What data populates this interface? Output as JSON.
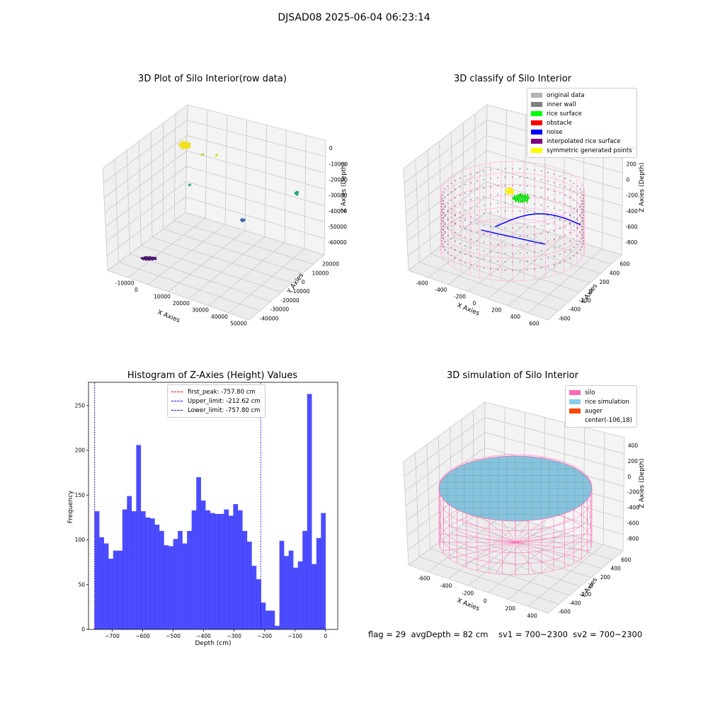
{
  "suptitle": "DJSAD08 2025-06-04 06:23:14",
  "panel_raw": {
    "title": "3D Plot of Silo Interior(row data)",
    "xlabel": "X Axies",
    "ylabel": "Y Axies",
    "zlabel": "Z Axies (Depth)",
    "x_ticks": [
      "-10000",
      "0",
      "10000",
      "20000",
      "30000",
      "40000",
      "50000"
    ],
    "y_ticks": [
      "20000",
      "10000",
      "0",
      "-10000",
      "-20000",
      "-30000",
      "-40000"
    ],
    "z_ticks": [
      "0",
      "-10000",
      "-20000",
      "-30000",
      "-40000",
      "-50000",
      "-60000"
    ]
  },
  "panel_classify": {
    "title": "3D classify of Silo Interior",
    "xlabel": "X Axies",
    "ylabel": "Y Axies",
    "zlabel": "Z Axies (Depth)",
    "x_ticks": [
      "-600",
      "-400",
      "-200",
      "0",
      "200",
      "400",
      "600"
    ],
    "y_ticks": [
      "600",
      "400",
      "200",
      "0",
      "-200",
      "-400",
      "-600"
    ],
    "z_ticks": [
      "400",
      "200",
      "0",
      "-200",
      "-400",
      "-600",
      "-800"
    ],
    "legend": [
      {
        "label": "original data",
        "color": "#b3b3b3"
      },
      {
        "label": "inner wall",
        "color": "#808080"
      },
      {
        "label": "rice surface",
        "color": "#00ff00"
      },
      {
        "label": "obstacle",
        "color": "#ff0000"
      },
      {
        "label": "noise",
        "color": "#0000ff"
      },
      {
        "label": "interpolated rice surface",
        "color": "#800080"
      },
      {
        "label": "symmetric generated points",
        "color": "#ffff00"
      }
    ]
  },
  "panel_sim": {
    "title": "3D simulation of Silo Interior",
    "xlabel": "X Axies",
    "ylabel": "Y Axies",
    "zlabel": "Z Axies (Depth)",
    "x_ticks": [
      "-600",
      "-400",
      "-200",
      "0",
      "200",
      "400"
    ],
    "y_ticks": [
      "600",
      "400",
      "200",
      "0",
      "-200",
      "-400",
      "-600"
    ],
    "z_ticks": [
      "400",
      "200",
      "0",
      "-200",
      "-400",
      "-600",
      "-800"
    ],
    "legend": [
      {
        "label": "silo",
        "color": "#ff69b4"
      },
      {
        "label": "rice simulation",
        "color": "#87ceeb"
      },
      {
        "label": "auger",
        "color": "#ff4500"
      },
      {
        "label": "center(-106,18)",
        "color": ""
      }
    ]
  },
  "status_text": "flag = 29  avgDepth = 82 cm    sv1 = 700~2300  sv2 = 700~2300",
  "chart_data": {
    "type": "bar",
    "title": "Histogram of Z-Axies (Height) Values",
    "xlabel": "Depth (cm)",
    "ylabel": "Frequency",
    "xlim": [
      -778,
      40
    ],
    "ylim": [
      0,
      276
    ],
    "x_ticks": [
      -700,
      -600,
      -500,
      -400,
      -300,
      -200,
      -100,
      0
    ],
    "x_tick_labels": [
      "−700",
      "−600",
      "−500",
      "−400",
      "−300",
      "−200",
      "−100",
      "0"
    ],
    "y_ticks": [
      0,
      50,
      100,
      150,
      200,
      250
    ],
    "bar_color": "#0000ff",
    "bin_start": -757.8,
    "bin_width": 15.16,
    "values": [
      132,
      103,
      96,
      79,
      88,
      88,
      134,
      149,
      132,
      206,
      132,
      125,
      124,
      117,
      110,
      94,
      93,
      101,
      110,
      96,
      110,
      133,
      170,
      144,
      133,
      130,
      129,
      129,
      134,
      127,
      140,
      133,
      110,
      98,
      71,
      56,
      30,
      21,
      21,
      4,
      99,
      82,
      88,
      69,
      76,
      110,
      263,
      73,
      102,
      130
    ],
    "vlines": [
      {
        "label": "first_peak: -757.80 cm",
        "x": -757.8,
        "color": "#ff0000"
      },
      {
        "label": "Upper_limit: -212.62 cm",
        "x": -212.62,
        "color": "#0000ff"
      },
      {
        "label": "Lower_limit: -757.80 cm",
        "x": -757.8,
        "color": "#0000ff"
      }
    ]
  }
}
